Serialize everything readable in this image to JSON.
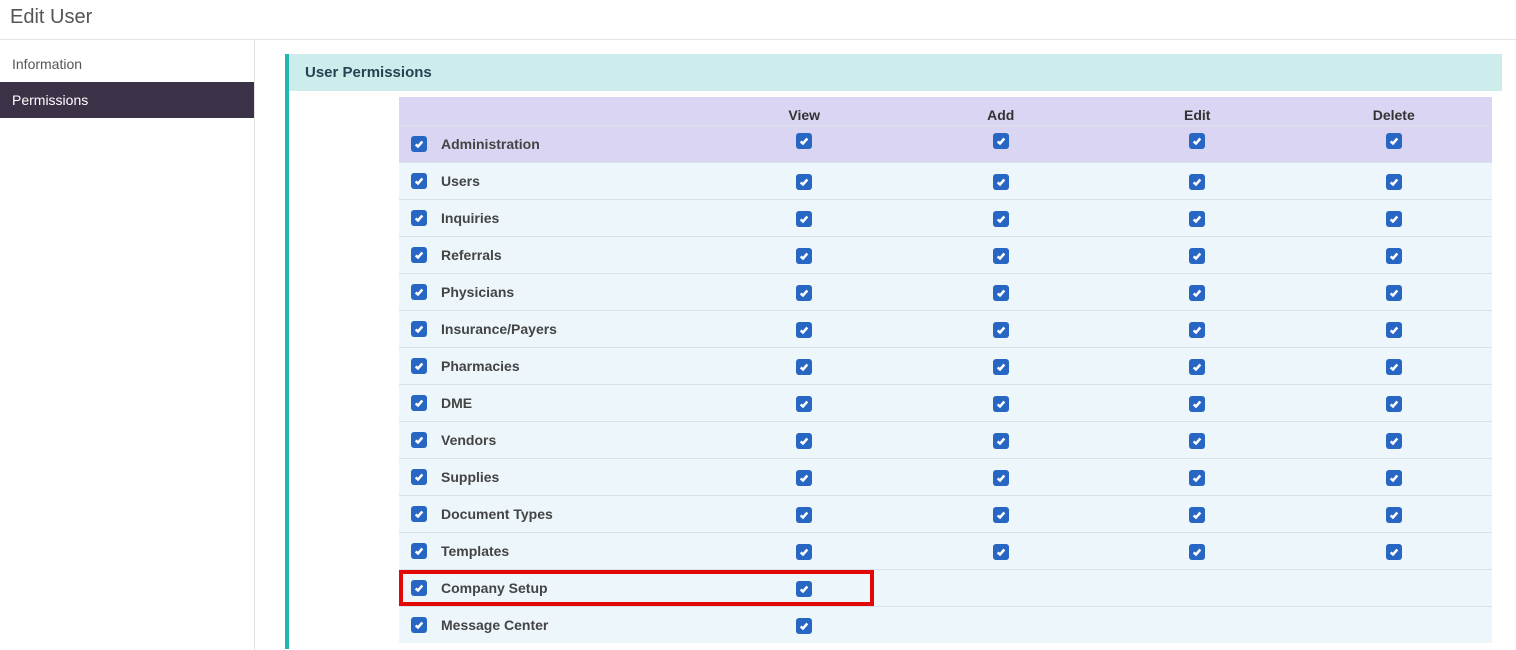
{
  "colors": {
    "brand_teal": "#1fb7b0",
    "panel_header_bg": "#cdeded",
    "table_header_bg": "#dad5f3",
    "row_bg": "#ecf6fb",
    "checkbox_bg": "#2866c4",
    "nav_active_bg": "#3c3247",
    "highlight_border": "#e30808"
  },
  "page": {
    "title": "Edit User"
  },
  "sidebar": {
    "items": [
      {
        "label": "Information",
        "active": false
      },
      {
        "label": "Permissions",
        "active": true
      }
    ]
  },
  "panel": {
    "title": "User Permissions",
    "columns": [
      "View",
      "Add",
      "Edit",
      "Delete"
    ],
    "rows": [
      {
        "label": "Administration",
        "enabled": true,
        "perms": [
          true,
          true,
          true,
          true
        ],
        "is_header_row": true,
        "highlight": false
      },
      {
        "label": "Users",
        "enabled": true,
        "perms": [
          true,
          true,
          true,
          true
        ],
        "is_header_row": false,
        "highlight": false
      },
      {
        "label": "Inquiries",
        "enabled": true,
        "perms": [
          true,
          true,
          true,
          true
        ],
        "is_header_row": false,
        "highlight": false
      },
      {
        "label": "Referrals",
        "enabled": true,
        "perms": [
          true,
          true,
          true,
          true
        ],
        "is_header_row": false,
        "highlight": false
      },
      {
        "label": "Physicians",
        "enabled": true,
        "perms": [
          true,
          true,
          true,
          true
        ],
        "is_header_row": false,
        "highlight": false
      },
      {
        "label": "Insurance/Payers",
        "enabled": true,
        "perms": [
          true,
          true,
          true,
          true
        ],
        "is_header_row": false,
        "highlight": false
      },
      {
        "label": "Pharmacies",
        "enabled": true,
        "perms": [
          true,
          true,
          true,
          true
        ],
        "is_header_row": false,
        "highlight": false
      },
      {
        "label": "DME",
        "enabled": true,
        "perms": [
          true,
          true,
          true,
          true
        ],
        "is_header_row": false,
        "highlight": false
      },
      {
        "label": "Vendors",
        "enabled": true,
        "perms": [
          true,
          true,
          true,
          true
        ],
        "is_header_row": false,
        "highlight": false
      },
      {
        "label": "Supplies",
        "enabled": true,
        "perms": [
          true,
          true,
          true,
          true
        ],
        "is_header_row": false,
        "highlight": false
      },
      {
        "label": "Document Types",
        "enabled": true,
        "perms": [
          true,
          true,
          true,
          true
        ],
        "is_header_row": false,
        "highlight": false
      },
      {
        "label": "Templates",
        "enabled": true,
        "perms": [
          true,
          true,
          true,
          true
        ],
        "is_header_row": false,
        "highlight": false
      },
      {
        "label": "Company Setup",
        "enabled": true,
        "perms": [
          true,
          null,
          null,
          null
        ],
        "is_header_row": false,
        "highlight": true
      },
      {
        "label": "Message Center",
        "enabled": true,
        "perms": [
          true,
          null,
          null,
          null
        ],
        "is_header_row": false,
        "highlight": false
      }
    ]
  }
}
